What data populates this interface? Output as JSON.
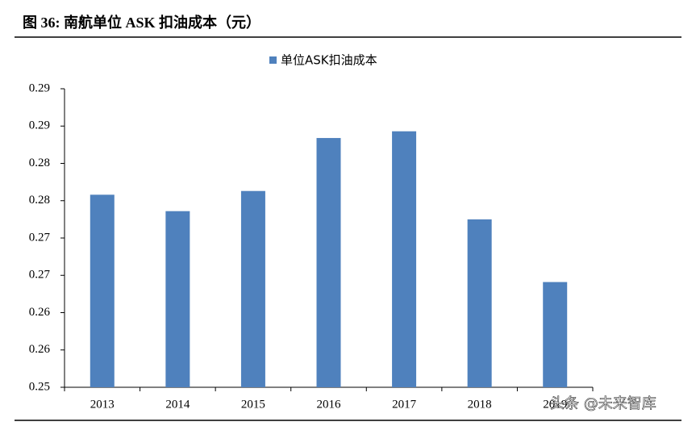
{
  "title": "图 36:  南航单位 ASK 扣油成本（元）",
  "chart_data": {
    "type": "bar",
    "categories": [
      "2013",
      "2014",
      "2015",
      "2016",
      "2017",
      "2018",
      "2019"
    ],
    "series": [
      {
        "name": "单位ASK扣油成本",
        "color": "#4f81bd",
        "values": [
          0.2758,
          0.2736,
          0.2763,
          0.2834,
          0.2843,
          0.2725,
          0.2641
        ]
      }
    ],
    "ylim": [
      0.25,
      0.29
    ],
    "yticks": [
      {
        "value": 0.25,
        "label": "0.25"
      },
      {
        "value": 0.255,
        "label": "0.26"
      },
      {
        "value": 0.26,
        "label": "0.26"
      },
      {
        "value": 0.265,
        "label": "0.27"
      },
      {
        "value": 0.27,
        "label": "0.27"
      },
      {
        "value": 0.275,
        "label": "0.28"
      },
      {
        "value": 0.28,
        "label": "0.28"
      },
      {
        "value": 0.285,
        "label": "0.29"
      },
      {
        "value": 0.29,
        "label": "0.29"
      }
    ],
    "legend": "top"
  },
  "watermark": "头条 @未来智库"
}
